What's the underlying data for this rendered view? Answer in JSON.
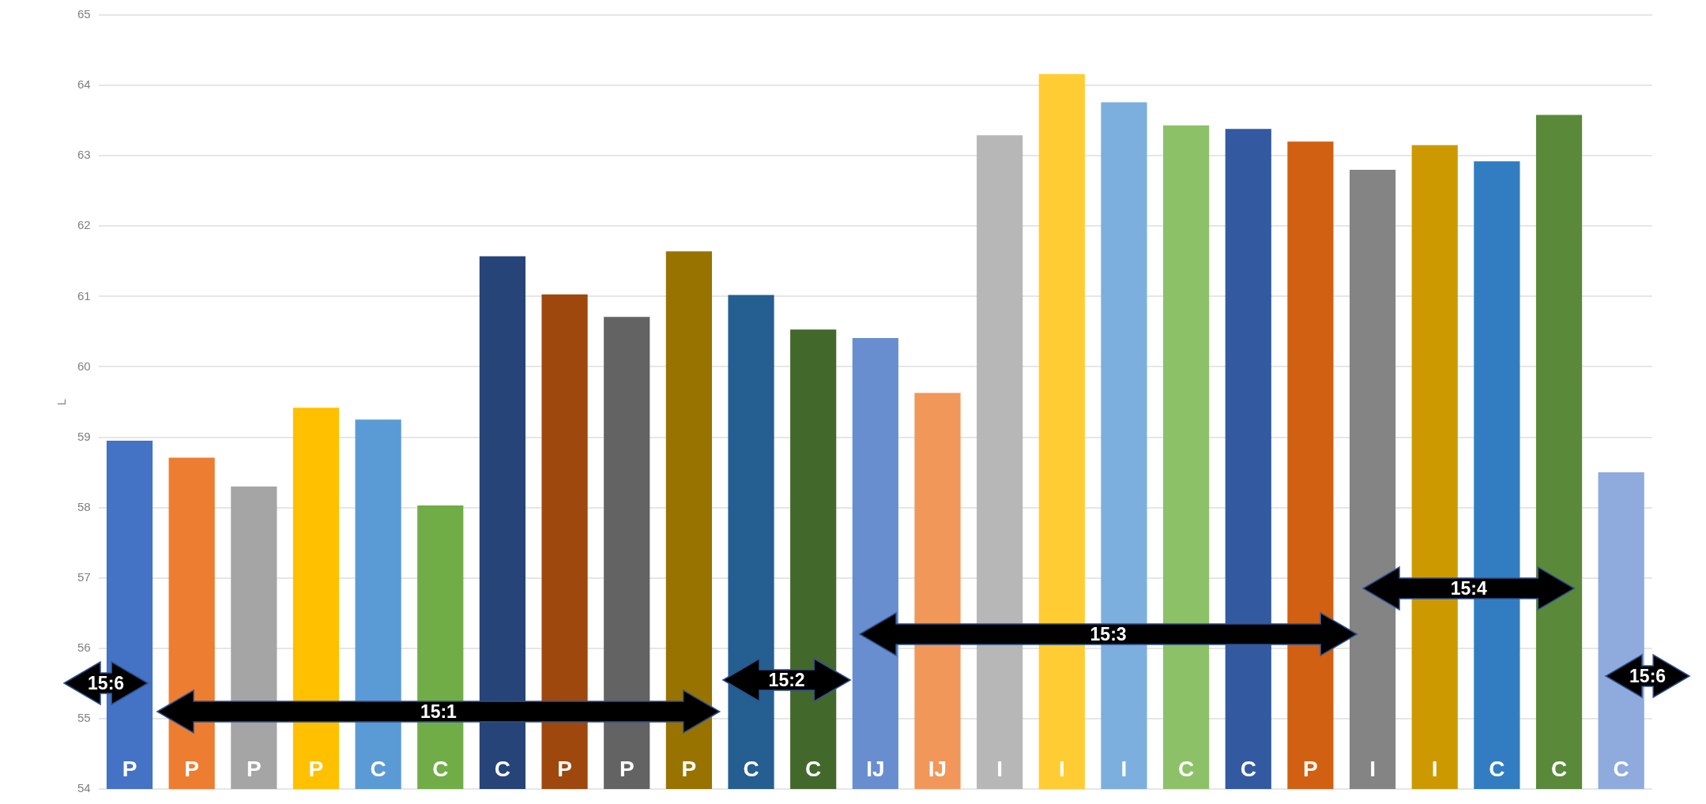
{
  "chart_data": {
    "type": "bar",
    "ylabel": "L",
    "categories": [
      "P",
      "P",
      "P",
      "P",
      "C",
      "C",
      "C",
      "P",
      "P",
      "P",
      "C",
      "C",
      "IJ",
      "IJ",
      "I",
      "I",
      "I",
      "C",
      "C",
      "P",
      "I",
      "I",
      "C",
      "C",
      "C"
    ],
    "values": [
      58.95,
      58.71,
      58.3,
      59.42,
      59.25,
      58.03,
      61.57,
      61.03,
      60.71,
      61.64,
      61.02,
      60.53,
      60.41,
      59.63,
      63.29,
      64.16,
      63.76,
      63.43,
      63.38,
      63.2,
      62.8,
      63.15,
      62.92,
      63.58,
      58.5
    ],
    "colors": [
      "#4472c4",
      "#ed7d31",
      "#a5a5a5",
      "#ffc000",
      "#5b9bd5",
      "#70ad47",
      "#264478",
      "#9e480e",
      "#636363",
      "#997300",
      "#255e91",
      "#43682b",
      "#698ed0",
      "#f1975a",
      "#b7b7b7",
      "#ffcd33",
      "#7cafdd",
      "#8cc168",
      "#335aa1",
      "#d26012",
      "#848484",
      "#cc9a00",
      "#327dc2",
      "#5a8a39",
      "#8faadc"
    ],
    "ylim": [
      54,
      65
    ],
    "yticks": [
      54,
      55,
      56,
      57,
      58,
      59,
      60,
      61,
      62,
      63,
      64,
      65
    ],
    "grid": "y",
    "legend": false,
    "annotations": [
      "15:6",
      "15:1",
      "15:2",
      "15:3",
      "15:4",
      "15:6"
    ]
  }
}
